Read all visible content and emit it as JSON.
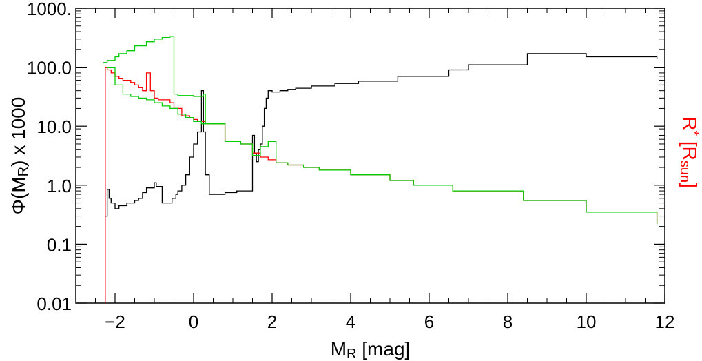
{
  "chart_data": {
    "type": "line",
    "step": true,
    "xlabel": "M_R [mag]",
    "ylabel_left": "Φ(M_R) x 1000",
    "ylabel_right": "R* [R_sun]",
    "xlim": [
      -3,
      12
    ],
    "ylim": [
      0.01,
      1000
    ],
    "yscale": "log",
    "x_ticks": [
      -2,
      0,
      2,
      4,
      6,
      8,
      10,
      12
    ],
    "x_tick_labels": [
      "−2",
      "0",
      "2",
      "4",
      "6",
      "8",
      "10",
      "12"
    ],
    "y_ticks": [
      0.01,
      0.1,
      1,
      10,
      100,
      1000
    ],
    "y_tick_labels": [
      "0.01",
      "0.1",
      "1.0",
      "10.0",
      "100.0",
      "1000."
    ],
    "grid": false,
    "series": [
      {
        "color": "#000000",
        "x": [
          -2.25,
          -2.2,
          -2.15,
          -2.1,
          -2.0,
          -1.9,
          -1.7,
          -1.5,
          -1.4,
          -1.3,
          -1.2,
          -1.0,
          -0.95,
          -0.8,
          -0.6,
          -0.55,
          -0.5,
          -0.45,
          -0.4,
          -0.3,
          -0.2,
          -0.1,
          0.0,
          0.1,
          0.2,
          0.25,
          0.3,
          0.4,
          0.6,
          0.8,
          1.0,
          1.1,
          1.2,
          1.3,
          1.4,
          1.5,
          1.55,
          1.6,
          1.65,
          1.7,
          1.75,
          1.8,
          1.85,
          1.9,
          2.0,
          2.2,
          2.4,
          2.6,
          3.0,
          3.6,
          4.2,
          5.2,
          6.5,
          7.0,
          8.5,
          10.0,
          11.8
        ],
        "y": [
          0.3,
          0.85,
          0.6,
          0.5,
          0.4,
          0.45,
          0.5,
          0.55,
          0.6,
          0.75,
          0.9,
          1.1,
          0.95,
          0.5,
          0.5,
          0.6,
          0.6,
          0.7,
          0.8,
          1.0,
          1.5,
          3.0,
          5.0,
          8.0,
          40.0,
          8.0,
          1.5,
          0.7,
          0.7,
          0.75,
          0.75,
          0.8,
          0.8,
          0.8,
          0.8,
          7.0,
          3.5,
          2.5,
          4.0,
          5.0,
          10.0,
          20.0,
          30.0,
          40.0,
          38.0,
          40.0,
          42.0,
          44.0,
          48.0,
          53.0,
          58.0,
          70.0,
          90.0,
          110.0,
          170.0,
          150.0,
          140.0
        ]
      },
      {
        "color": "#ff0000",
        "x": [
          -2.3,
          -2.25,
          -2.2,
          -2.1,
          -2.0,
          -1.9,
          -1.8,
          -1.6,
          -1.5,
          -1.4,
          -1.3,
          -1.2,
          -1.1,
          -1.0,
          -0.9,
          -0.6,
          -0.5,
          -0.3,
          -0.1,
          0.0,
          0.1,
          0.3,
          0.8,
          1.2,
          1.5,
          1.7,
          1.9,
          2.1,
          2.4,
          2.8,
          3.2,
          4.0,
          5.0,
          5.6,
          6.6,
          8.4,
          10.0,
          11.8
        ],
        "y": [
          0.003,
          100.0,
          90.0,
          80.0,
          70.0,
          65.0,
          60.0,
          55.0,
          50.0,
          45.0,
          40.0,
          80.0,
          40.0,
          30.0,
          28.0,
          25.0,
          20.0,
          15.0,
          14.0,
          13.0,
          12.0,
          11.0,
          5.5,
          5.0,
          3.5,
          3.0,
          2.7,
          2.4,
          2.2,
          2.0,
          1.8,
          1.5,
          1.2,
          1.0,
          0.8,
          0.55,
          0.35,
          0.22
        ]
      },
      {
        "color": "#00cc00",
        "x": [
          -2.3,
          -2.2,
          -2.0,
          -1.9,
          -1.7,
          -1.5,
          -1.2,
          -1.0,
          -0.8,
          -0.6,
          -0.5,
          -0.4,
          0.0,
          0.25,
          0.3,
          0.8,
          1.2,
          1.5,
          1.7,
          1.9,
          2.1,
          2.4,
          2.8,
          3.2,
          4.0,
          5.0,
          5.6,
          6.6,
          8.4,
          10.0,
          11.8
        ],
        "y": [
          120.0,
          130.0,
          150.0,
          170.0,
          190.0,
          230.0,
          270.0,
          300.0,
          320.0,
          330.0,
          35.0,
          33.0,
          32.0,
          35.0,
          11.0,
          5.5,
          5.0,
          3.2,
          4.5,
          5.5,
          2.4,
          2.2,
          2.0,
          1.8,
          1.5,
          1.2,
          1.0,
          0.8,
          0.55,
          0.35,
          0.22
        ]
      },
      {
        "color": "#00cc00",
        "x": [
          -2.2,
          -2.0,
          -1.8,
          -1.6,
          -1.4,
          -1.2,
          -1.0,
          -0.8,
          -0.6,
          -0.4,
          -0.2,
          0.0,
          0.2,
          0.3
        ],
        "y": [
          100.0,
          50.0,
          35.0,
          32.0,
          30.0,
          28.0,
          25.0,
          22.0,
          20.0,
          16.0,
          14.0,
          12.0,
          11.0,
          11.0
        ]
      }
    ]
  }
}
